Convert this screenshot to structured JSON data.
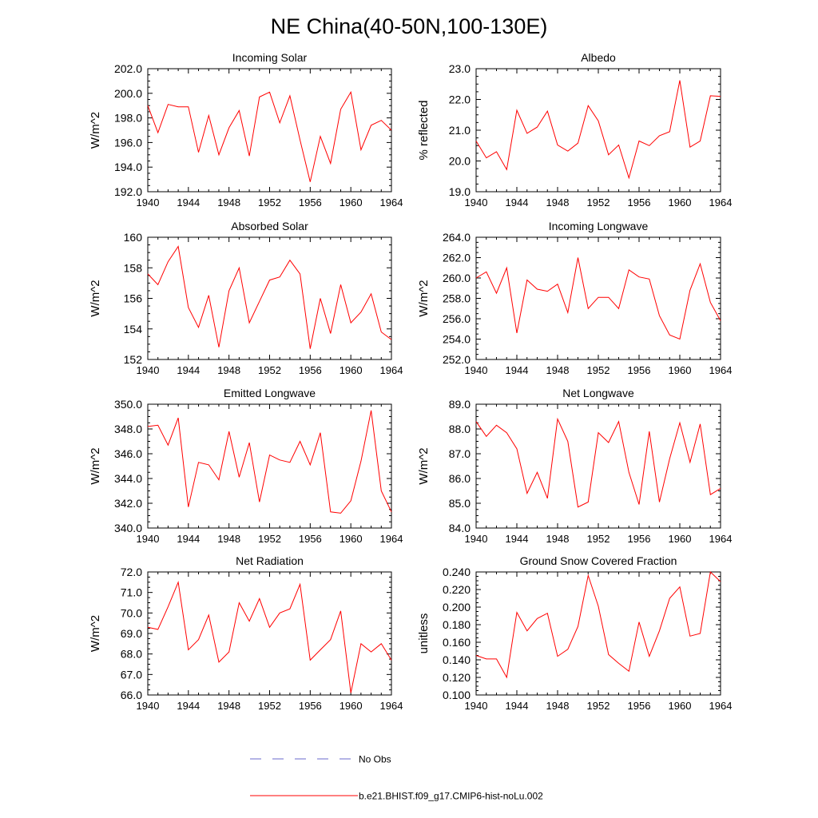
{
  "figure": {
    "title": "NE China(40-50N,100-130E)",
    "legend": [
      {
        "label": "No Obs",
        "color": "#6a6acd",
        "dash": "dashed"
      },
      {
        "label": "b.e21.BHIST.f09_g17.CMIP6-hist-noLu.002",
        "color": "#ff0000",
        "dash": "solid"
      }
    ],
    "series_color": "#ff0000"
  },
  "chart_data": [
    {
      "type": "line",
      "title": "Incoming Solar",
      "ylabel": "W/m^2",
      "xlabel": "",
      "xlim": [
        1940,
        1964
      ],
      "ylim": [
        192,
        202
      ],
      "yticks": [
        "192.0",
        "194.0",
        "196.0",
        "198.0",
        "200.0",
        "202.0"
      ],
      "xticks": [
        "1940",
        "1944",
        "1948",
        "1952",
        "1956",
        "1960",
        "1964"
      ],
      "x": [
        1940,
        1941,
        1942,
        1943,
        1944,
        1945,
        1946,
        1947,
        1948,
        1949,
        1950,
        1951,
        1952,
        1953,
        1954,
        1955,
        1956,
        1957,
        1958,
        1959,
        1960,
        1961,
        1962,
        1963,
        1964
      ],
      "values": [
        199.0,
        196.8,
        199.1,
        198.9,
        198.9,
        195.2,
        198.2,
        195.0,
        197.2,
        198.6,
        194.9,
        199.7,
        200.1,
        197.6,
        199.8,
        196.2,
        192.8,
        196.5,
        194.3,
        198.7,
        200.1,
        195.4,
        197.4,
        197.8,
        197.0
      ]
    },
    {
      "type": "line",
      "title": "Albedo",
      "ylabel": "% reflected",
      "xlabel": "",
      "xlim": [
        1940,
        1964
      ],
      "ylim": [
        19,
        23
      ],
      "yticks": [
        "19.0",
        "20.0",
        "21.0",
        "22.0",
        "23.0"
      ],
      "xticks": [
        "1940",
        "1944",
        "1948",
        "1952",
        "1956",
        "1960",
        "1964"
      ],
      "x": [
        1940,
        1941,
        1942,
        1943,
        1944,
        1945,
        1946,
        1947,
        1948,
        1949,
        1950,
        1951,
        1952,
        1953,
        1954,
        1955,
        1956,
        1957,
        1958,
        1959,
        1960,
        1961,
        1962,
        1963,
        1964
      ],
      "values": [
        20.65,
        20.1,
        20.3,
        19.72,
        21.65,
        20.9,
        21.1,
        21.62,
        20.52,
        20.32,
        20.58,
        21.8,
        21.3,
        20.2,
        20.52,
        19.45,
        20.65,
        20.5,
        20.82,
        20.95,
        22.62,
        20.45,
        20.65,
        22.12,
        22.1
      ]
    },
    {
      "type": "line",
      "title": "Absorbed Solar",
      "ylabel": "W/m^2",
      "xlabel": "",
      "xlim": [
        1940,
        1964
      ],
      "ylim": [
        152,
        160
      ],
      "yticks": [
        "152",
        "154",
        "156",
        "158",
        "160"
      ],
      "xticks": [
        "1940",
        "1944",
        "1948",
        "1952",
        "1956",
        "1960",
        "1964"
      ],
      "x": [
        1940,
        1941,
        1942,
        1943,
        1944,
        1945,
        1946,
        1947,
        1948,
        1949,
        1950,
        1951,
        1952,
        1953,
        1954,
        1955,
        1956,
        1957,
        1958,
        1959,
        1960,
        1961,
        1962,
        1963,
        1964
      ],
      "values": [
        157.6,
        156.9,
        158.4,
        159.4,
        155.4,
        154.1,
        156.2,
        152.8,
        156.5,
        158.0,
        154.4,
        155.8,
        157.2,
        157.4,
        158.5,
        157.6,
        152.7,
        156.0,
        153.7,
        156.9,
        154.4,
        155.1,
        156.3,
        153.8,
        153.3
      ]
    },
    {
      "type": "line",
      "title": "Incoming Longwave",
      "ylabel": "W/m^2",
      "xlabel": "",
      "xlim": [
        1940,
        1964
      ],
      "ylim": [
        252,
        264
      ],
      "yticks": [
        "252.0",
        "254.0",
        "256.0",
        "258.0",
        "260.0",
        "262.0",
        "264.0"
      ],
      "xticks": [
        "1940",
        "1944",
        "1948",
        "1952",
        "1956",
        "1960",
        "1964"
      ],
      "x": [
        1940,
        1941,
        1942,
        1943,
        1944,
        1945,
        1946,
        1947,
        1948,
        1949,
        1950,
        1951,
        1952,
        1953,
        1954,
        1955,
        1956,
        1957,
        1958,
        1959,
        1960,
        1961,
        1962,
        1963,
        1964
      ],
      "values": [
        260.0,
        260.6,
        258.5,
        261.0,
        254.6,
        259.8,
        258.9,
        258.7,
        259.4,
        256.6,
        262.0,
        257.0,
        258.1,
        258.1,
        257.0,
        260.8,
        260.1,
        259.9,
        256.3,
        254.4,
        254.0,
        258.8,
        261.4,
        257.6,
        255.8
      ]
    },
    {
      "type": "line",
      "title": "Emitted Longwave",
      "ylabel": "W/m^2",
      "xlabel": "",
      "xlim": [
        1940,
        1964
      ],
      "ylim": [
        340,
        350
      ],
      "yticks": [
        "340.0",
        "342.0",
        "344.0",
        "346.0",
        "348.0",
        "350.0"
      ],
      "xticks": [
        "1940",
        "1944",
        "1948",
        "1952",
        "1956",
        "1960",
        "1964"
      ],
      "x": [
        1940,
        1941,
        1942,
        1943,
        1944,
        1945,
        1946,
        1947,
        1948,
        1949,
        1950,
        1951,
        1952,
        1953,
        1954,
        1955,
        1956,
        1957,
        1958,
        1959,
        1960,
        1961,
        1962,
        1963,
        1964
      ],
      "values": [
        348.2,
        348.3,
        346.7,
        348.9,
        341.7,
        345.3,
        345.1,
        343.9,
        347.8,
        344.1,
        346.9,
        342.1,
        345.9,
        345.5,
        345.3,
        347.0,
        345.1,
        347.7,
        341.3,
        341.2,
        342.2,
        345.4,
        349.5,
        343.0,
        341.3
      ]
    },
    {
      "type": "line",
      "title": "Net Longwave",
      "ylabel": "W/m^2",
      "xlabel": "",
      "xlim": [
        1940,
        1964
      ],
      "ylim": [
        84,
        89
      ],
      "yticks": [
        "84.0",
        "85.0",
        "86.0",
        "87.0",
        "88.0",
        "89.0"
      ],
      "xticks": [
        "1940",
        "1944",
        "1948",
        "1952",
        "1956",
        "1960",
        "1964"
      ],
      "x": [
        1940,
        1941,
        1942,
        1943,
        1944,
        1945,
        1946,
        1947,
        1948,
        1949,
        1950,
        1951,
        1952,
        1953,
        1954,
        1955,
        1956,
        1957,
        1958,
        1959,
        1960,
        1961,
        1962,
        1963,
        1964
      ],
      "values": [
        88.3,
        87.7,
        88.15,
        87.85,
        87.2,
        85.4,
        86.25,
        85.2,
        88.4,
        87.5,
        84.85,
        85.05,
        87.85,
        87.45,
        88.3,
        86.25,
        84.95,
        87.9,
        85.05,
        86.8,
        88.25,
        86.65,
        88.2,
        85.35,
        85.6
      ]
    },
    {
      "type": "line",
      "title": "Net Radiation",
      "ylabel": "W/m^2",
      "xlabel": "",
      "xlim": [
        1940,
        1964
      ],
      "ylim": [
        66,
        72
      ],
      "yticks": [
        "66.0",
        "67.0",
        "68.0",
        "69.0",
        "70.0",
        "71.0",
        "72.0"
      ],
      "xticks": [
        "1940",
        "1944",
        "1948",
        "1952",
        "1956",
        "1960",
        "1964"
      ],
      "x": [
        1940,
        1941,
        1942,
        1943,
        1944,
        1945,
        1946,
        1947,
        1948,
        1949,
        1950,
        1951,
        1952,
        1953,
        1954,
        1955,
        1956,
        1957,
        1958,
        1959,
        1960,
        1961,
        1962,
        1963,
        1964
      ],
      "values": [
        69.3,
        69.2,
        70.3,
        71.5,
        68.2,
        68.7,
        69.9,
        67.6,
        68.1,
        70.5,
        69.6,
        70.7,
        69.3,
        70.0,
        70.2,
        71.4,
        67.7,
        68.2,
        68.7,
        70.1,
        66.1,
        68.5,
        68.1,
        68.5,
        67.7
      ]
    },
    {
      "type": "line",
      "title": "Ground Snow Covered Fraction",
      "ylabel": "unitless",
      "xlabel": "",
      "xlim": [
        1940,
        1964
      ],
      "ylim": [
        0.1,
        0.24
      ],
      "yticks": [
        "0.100",
        "0.120",
        "0.140",
        "0.160",
        "0.180",
        "0.200",
        "0.220",
        "0.240"
      ],
      "xticks": [
        "1940",
        "1944",
        "1948",
        "1952",
        "1956",
        "1960",
        "1964"
      ],
      "x": [
        1940,
        1941,
        1942,
        1943,
        1944,
        1945,
        1946,
        1947,
        1948,
        1949,
        1950,
        1951,
        1952,
        1953,
        1954,
        1955,
        1956,
        1957,
        1958,
        1959,
        1960,
        1961,
        1962,
        1963,
        1964
      ],
      "values": [
        0.145,
        0.141,
        0.141,
        0.12,
        0.194,
        0.173,
        0.187,
        0.193,
        0.144,
        0.152,
        0.178,
        0.236,
        0.201,
        0.146,
        0.136,
        0.127,
        0.183,
        0.144,
        0.173,
        0.21,
        0.223,
        0.167,
        0.17,
        0.24,
        0.229
      ]
    }
  ]
}
